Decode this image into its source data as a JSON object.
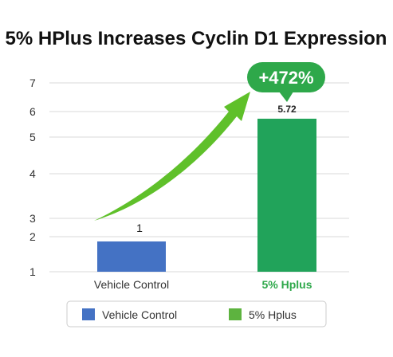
{
  "chart_data": {
    "type": "bar",
    "title": "5% HPlus Increases Cyclin D1 Expression",
    "categories": [
      "Vehicle Control",
      "5% Hplus"
    ],
    "values": [
      1,
      5.72
    ],
    "data_labels": [
      "1",
      "5.72"
    ],
    "y_ticks": [
      "1",
      "2",
      "3",
      "4",
      "5",
      "6",
      "7"
    ],
    "ylim": [
      1,
      7
    ],
    "grid": true,
    "bar_colors": [
      "#4472c4",
      "#21a35a"
    ],
    "category_label_colors": [
      "#333333",
      "#2ea84a"
    ],
    "legend": {
      "position": "bottom",
      "entries": [
        {
          "label": "Vehicle Control",
          "color": "#4472c4"
        },
        {
          "label": "5% Hplus",
          "color": "#5db33f"
        }
      ]
    },
    "annotation": {
      "text": "+472%",
      "bubble_color": "#2ea84a",
      "arrow_color": "#5fc02a"
    }
  }
}
